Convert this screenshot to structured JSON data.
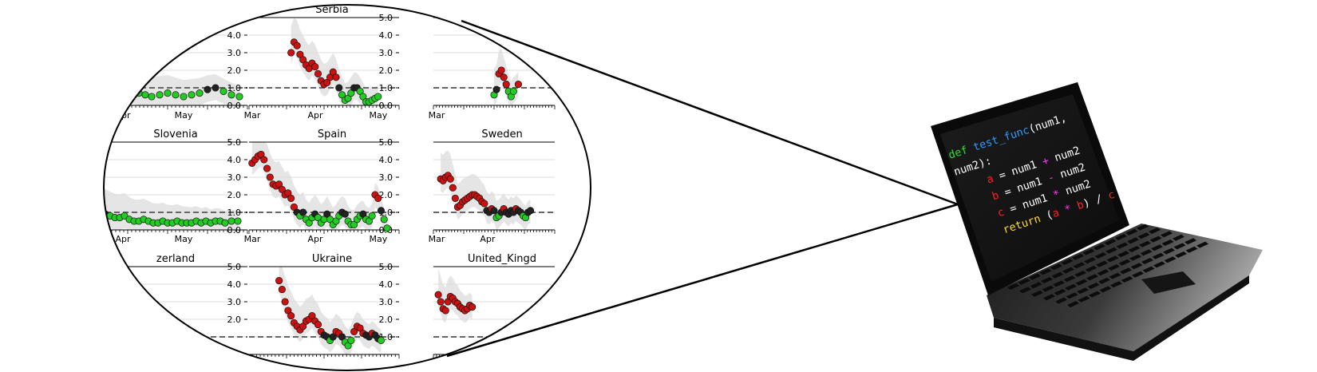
{
  "panels": [
    {
      "id": "row1-col1",
      "title": "",
      "xticks": [
        "Apr",
        "May"
      ],
      "yticks": [
        "0.0",
        "1.0",
        "2.0",
        "3.0",
        "4.0"
      ],
      "series": [
        [
          0.05,
          0.5
        ],
        [
          0.08,
          0.7
        ],
        [
          0.12,
          1.1
        ],
        [
          0.16,
          1.5
        ],
        [
          0.2,
          1.4
        ],
        [
          0.24,
          1.1
        ],
        [
          0.28,
          0.8
        ],
        [
          0.32,
          0.7
        ],
        [
          0.36,
          0.6
        ],
        [
          0.4,
          0.5
        ],
        [
          0.45,
          0.6
        ],
        [
          0.5,
          0.7
        ],
        [
          0.55,
          0.6
        ],
        [
          0.6,
          0.5
        ],
        [
          0.65,
          0.6
        ],
        [
          0.7,
          0.7
        ],
        [
          0.75,
          0.9
        ],
        [
          0.8,
          1.0
        ],
        [
          0.85,
          0.8
        ],
        [
          0.9,
          0.6
        ],
        [
          0.95,
          0.5
        ]
      ]
    },
    {
      "id": "serbia",
      "title": "Serbia",
      "xticks": [
        "Mar",
        "Apr",
        "May"
      ],
      "yticks": [
        "0.0",
        "1.0",
        "2.0",
        "3.0",
        "4.0",
        "5.0"
      ],
      "series": [
        [
          0.28,
          3.0
        ],
        [
          0.3,
          3.6
        ],
        [
          0.32,
          3.4
        ],
        [
          0.34,
          2.9
        ],
        [
          0.36,
          2.6
        ],
        [
          0.38,
          2.3
        ],
        [
          0.4,
          2.1
        ],
        [
          0.42,
          2.4
        ],
        [
          0.44,
          2.2
        ],
        [
          0.46,
          1.8
        ],
        [
          0.48,
          1.4
        ],
        [
          0.5,
          1.2
        ],
        [
          0.52,
          1.3
        ],
        [
          0.54,
          1.6
        ],
        [
          0.56,
          1.9
        ],
        [
          0.58,
          1.6
        ],
        [
          0.6,
          1.0
        ],
        [
          0.62,
          0.6
        ],
        [
          0.64,
          0.3
        ],
        [
          0.66,
          0.4
        ],
        [
          0.68,
          0.7
        ],
        [
          0.7,
          1.0
        ],
        [
          0.72,
          1.0
        ],
        [
          0.74,
          0.8
        ],
        [
          0.76,
          0.5
        ],
        [
          0.78,
          0.2
        ],
        [
          0.8,
          0.2
        ],
        [
          0.82,
          0.3
        ],
        [
          0.84,
          0.4
        ],
        [
          0.86,
          0.5
        ]
      ]
    },
    {
      "id": "row1-col3",
      "title": "",
      "xticks": [
        "Mar"
      ],
      "yticks": [],
      "series": [
        [
          0.5,
          0.6
        ],
        [
          0.52,
          0.9
        ],
        [
          0.54,
          1.8
        ],
        [
          0.56,
          2.0
        ],
        [
          0.58,
          1.6
        ],
        [
          0.6,
          1.2
        ],
        [
          0.62,
          0.8
        ],
        [
          0.64,
          0.5
        ],
        [
          0.66,
          0.8
        ],
        [
          0.7,
          1.2
        ]
      ]
    },
    {
      "id": "slovenia",
      "title": "Slovenia",
      "xticks": [
        "Apr",
        "May"
      ],
      "yticks": [
        "0.0",
        "1.0",
        "2.0",
        "3.0",
        "4.0",
        "5.0"
      ],
      "series": [
        [
          0.02,
          1.3
        ],
        [
          0.05,
          1.4
        ],
        [
          0.08,
          1.1
        ],
        [
          0.11,
          0.9
        ],
        [
          0.14,
          0.8
        ],
        [
          0.17,
          0.7
        ],
        [
          0.2,
          0.7
        ],
        [
          0.23,
          0.8
        ],
        [
          0.26,
          0.6
        ],
        [
          0.29,
          0.5
        ],
        [
          0.32,
          0.5
        ],
        [
          0.35,
          0.6
        ],
        [
          0.38,
          0.5
        ],
        [
          0.41,
          0.4
        ],
        [
          0.44,
          0.4
        ],
        [
          0.47,
          0.5
        ],
        [
          0.5,
          0.4
        ],
        [
          0.53,
          0.4
        ],
        [
          0.56,
          0.5
        ],
        [
          0.59,
          0.4
        ],
        [
          0.62,
          0.4
        ],
        [
          0.65,
          0.4
        ],
        [
          0.68,
          0.5
        ],
        [
          0.71,
          0.4
        ],
        [
          0.74,
          0.5
        ],
        [
          0.77,
          0.4
        ],
        [
          0.8,
          0.5
        ],
        [
          0.83,
          0.5
        ],
        [
          0.86,
          0.4
        ],
        [
          0.9,
          0.5
        ],
        [
          0.94,
          0.5
        ]
      ]
    },
    {
      "id": "spain",
      "title": "Spain",
      "xticks": [
        "Mar",
        "Apr",
        "May"
      ],
      "yticks": [
        "0.0",
        "1.0",
        "2.0",
        "3.0",
        "4.0",
        "5.0"
      ],
      "series": [
        [
          0.02,
          3.8
        ],
        [
          0.04,
          4.0
        ],
        [
          0.06,
          4.2
        ],
        [
          0.08,
          4.3
        ],
        [
          0.1,
          4.0
        ],
        [
          0.12,
          3.5
        ],
        [
          0.14,
          3.0
        ],
        [
          0.16,
          2.6
        ],
        [
          0.18,
          2.5
        ],
        [
          0.2,
          2.6
        ],
        [
          0.22,
          2.3
        ],
        [
          0.24,
          2.0
        ],
        [
          0.26,
          2.1
        ],
        [
          0.28,
          1.8
        ],
        [
          0.3,
          1.3
        ],
        [
          0.32,
          1.0
        ],
        [
          0.34,
          0.8
        ],
        [
          0.36,
          1.0
        ],
        [
          0.38,
          0.6
        ],
        [
          0.4,
          0.4
        ],
        [
          0.42,
          0.7
        ],
        [
          0.44,
          0.9
        ],
        [
          0.46,
          0.7
        ],
        [
          0.48,
          0.4
        ],
        [
          0.5,
          0.6
        ],
        [
          0.52,
          0.9
        ],
        [
          0.54,
          0.6
        ],
        [
          0.56,
          0.3
        ],
        [
          0.58,
          0.5
        ],
        [
          0.6,
          0.8
        ],
        [
          0.62,
          1.0
        ],
        [
          0.64,
          0.9
        ],
        [
          0.66,
          0.5
        ],
        [
          0.68,
          0.3
        ],
        [
          0.7,
          0.3
        ],
        [
          0.72,
          0.6
        ],
        [
          0.74,
          0.8
        ],
        [
          0.76,
          0.9
        ],
        [
          0.78,
          0.6
        ],
        [
          0.8,
          0.5
        ],
        [
          0.82,
          0.8
        ],
        [
          0.84,
          2.0
        ],
        [
          0.86,
          1.8
        ],
        [
          0.88,
          1.1
        ],
        [
          0.9,
          0.6
        ],
        [
          0.92,
          0.1
        ]
      ]
    },
    {
      "id": "sweden",
      "title": "Sweden",
      "xticks": [
        "Mar",
        "Apr"
      ],
      "yticks": [],
      "series": [
        [
          0.06,
          2.9
        ],
        [
          0.08,
          2.8
        ],
        [
          0.1,
          3.0
        ],
        [
          0.12,
          3.1
        ],
        [
          0.14,
          2.9
        ],
        [
          0.16,
          2.4
        ],
        [
          0.18,
          1.8
        ],
        [
          0.2,
          1.3
        ],
        [
          0.22,
          1.4
        ],
        [
          0.24,
          1.6
        ],
        [
          0.26,
          1.7
        ],
        [
          0.28,
          1.8
        ],
        [
          0.3,
          1.9
        ],
        [
          0.32,
          2.0
        ],
        [
          0.34,
          2.0
        ],
        [
          0.36,
          1.9
        ],
        [
          0.38,
          1.8
        ],
        [
          0.4,
          1.6
        ],
        [
          0.42,
          1.5
        ],
        [
          0.44,
          1.1
        ],
        [
          0.46,
          1.0
        ],
        [
          0.48,
          1.2
        ],
        [
          0.5,
          1.1
        ],
        [
          0.52,
          0.7
        ],
        [
          0.54,
          0.8
        ],
        [
          0.56,
          1.0
        ],
        [
          0.58,
          1.2
        ],
        [
          0.6,
          1.0
        ],
        [
          0.62,
          0.9
        ],
        [
          0.64,
          1.1
        ],
        [
          0.66,
          1.0
        ],
        [
          0.68,
          1.2
        ],
        [
          0.7,
          1.1
        ],
        [
          0.72,
          1.0
        ],
        [
          0.74,
          0.8
        ],
        [
          0.76,
          0.7
        ],
        [
          0.78,
          1.0
        ],
        [
          0.8,
          1.1
        ]
      ]
    },
    {
      "id": "switzerland",
      "title": "zerland",
      "xticks": [],
      "yticks": [
        "2.0",
        "3.0",
        "4.0",
        "5.0"
      ],
      "series": []
    },
    {
      "id": "ukraine",
      "title": "Ukraine",
      "xticks": [],
      "yticks": [
        "1.0",
        "2.0",
        "3.0",
        "4.0",
        "5.0"
      ],
      "series": [
        [
          0.2,
          4.2
        ],
        [
          0.22,
          3.7
        ],
        [
          0.24,
          3.0
        ],
        [
          0.26,
          2.5
        ],
        [
          0.28,
          2.2
        ],
        [
          0.3,
          1.8
        ],
        [
          0.32,
          1.6
        ],
        [
          0.34,
          1.4
        ],
        [
          0.36,
          1.6
        ],
        [
          0.38,
          1.9
        ],
        [
          0.4,
          2.0
        ],
        [
          0.42,
          2.2
        ],
        [
          0.44,
          1.9
        ],
        [
          0.46,
          1.7
        ],
        [
          0.48,
          1.3
        ],
        [
          0.5,
          1.1
        ],
        [
          0.52,
          1.0
        ],
        [
          0.54,
          0.8
        ],
        [
          0.56,
          1.0
        ],
        [
          0.58,
          1.3
        ],
        [
          0.6,
          1.2
        ],
        [
          0.62,
          1.0
        ],
        [
          0.64,
          0.7
        ],
        [
          0.66,
          0.5
        ],
        [
          0.68,
          0.8
        ],
        [
          0.7,
          1.3
        ],
        [
          0.72,
          1.6
        ],
        [
          0.74,
          1.5
        ],
        [
          0.76,
          1.2
        ],
        [
          0.78,
          1.1
        ],
        [
          0.8,
          1.0
        ],
        [
          0.82,
          1.2
        ],
        [
          0.84,
          1.1
        ],
        [
          0.86,
          0.9
        ],
        [
          0.88,
          0.8
        ]
      ]
    },
    {
      "id": "united-kingdom",
      "title": "United_Kingd",
      "xticks": [],
      "yticks": [],
      "series": [
        [
          0.04,
          3.4
        ],
        [
          0.06,
          3.0
        ],
        [
          0.08,
          2.6
        ],
        [
          0.1,
          2.5
        ],
        [
          0.12,
          3.0
        ],
        [
          0.14,
          3.3
        ],
        [
          0.16,
          3.2
        ],
        [
          0.18,
          3.0
        ],
        [
          0.2,
          2.9
        ],
        [
          0.22,
          2.7
        ],
        [
          0.24,
          2.6
        ],
        [
          0.26,
          2.5
        ],
        [
          0.28,
          2.6
        ],
        [
          0.3,
          2.8
        ],
        [
          0.32,
          2.7
        ]
      ]
    }
  ],
  "code": {
    "line1": {
      "kw": "def",
      "fn": "test_func",
      "rest": "(num1,"
    },
    "line2": {
      "text": "num2):"
    },
    "line3": {
      "var": "a",
      "mid": " = num1 ",
      "op": "+",
      "end": " num2"
    },
    "line4": {
      "var": "b",
      "mid": " = num1 ",
      "op": "-",
      "end": " num2"
    },
    "line5": {
      "var": "c",
      "mid": " = num1 ",
      "op": "*",
      "end": " num2"
    },
    "line6": {
      "kw": "return",
      "p1": " (",
      "a": "a",
      "op": " * ",
      "b": "b",
      "p2": ") / ",
      "c": "c"
    }
  },
  "colors": {
    "above": "#cc1111",
    "below": "#22cc22",
    "neutral": "#222222",
    "band": "#e5e5e5",
    "kw_green": "#33dd33",
    "fn_blue": "#3399ff",
    "var_red": "#ff2222",
    "op_magenta": "#ff33ff",
    "kw_yellow": "#ffdd22"
  }
}
